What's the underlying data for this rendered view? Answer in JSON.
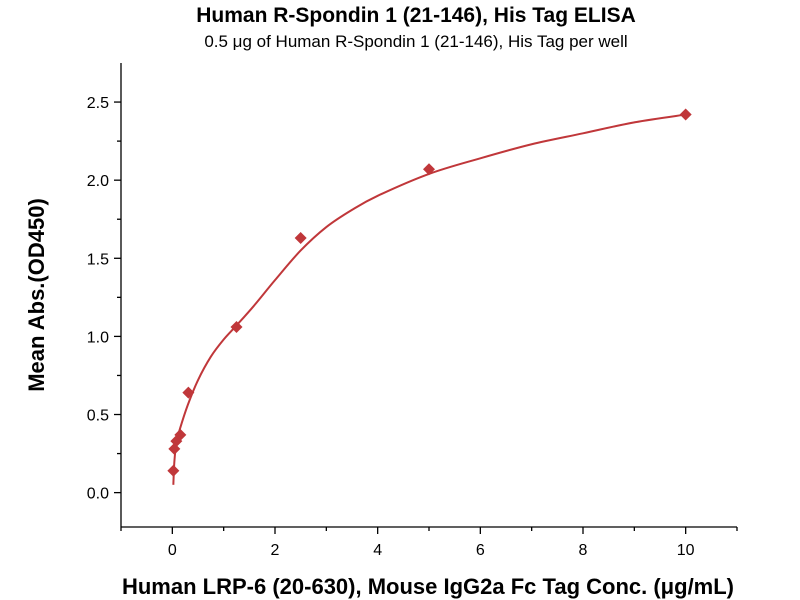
{
  "chart_data": {
    "type": "scatter",
    "title": "Human R-Spondin 1 (21-146), His Tag ELISA",
    "subtitle": "0.5 μg of Human R-Spondin 1 (21-146), His Tag per well",
    "xlabel": "Human LRP-6 (20-630), Mouse IgG2a Fc Tag Conc. (μg/mL)",
    "ylabel": "Mean Abs.(OD450)",
    "xlim": [
      -1,
      11
    ],
    "ylim": [
      -0.22,
      2.75
    ],
    "x_ticks": [
      0,
      2,
      4,
      6,
      8,
      10
    ],
    "x_tick_labels": [
      "0",
      "2",
      "4",
      "6",
      "8",
      "10"
    ],
    "x_minor_ticks": [
      -1,
      1,
      3,
      5,
      7,
      9,
      11
    ],
    "y_ticks": [
      0.0,
      0.5,
      1.0,
      1.5,
      2.0,
      2.5
    ],
    "y_tick_labels": [
      "0.0",
      "0.5",
      "1.0",
      "1.5",
      "2.0",
      "2.5"
    ],
    "y_minor_ticks": [
      0.25,
      0.75,
      1.25,
      1.75,
      2.25
    ],
    "series": [
      {
        "x": [
          0.0195,
          0.039,
          0.078,
          0.156,
          0.3125,
          1.25,
          2.5,
          5.0,
          10.0
        ],
        "y": [
          0.14,
          0.28,
          0.33,
          0.37,
          0.64,
          1.06,
          1.63,
          2.07,
          2.42
        ],
        "marker": "diamond",
        "color": "#c0373a"
      }
    ],
    "fit_curve": {
      "color": "#c0373a",
      "x": [
        0.0195,
        0.04,
        0.08,
        0.15,
        0.3,
        0.5,
        0.75,
        1.0,
        1.25,
        1.6,
        2.0,
        2.5,
        3.0,
        3.5,
        4.0,
        5.0,
        6.0,
        7.0,
        8.0,
        9.0,
        10.0
      ],
      "y": [
        0.05,
        0.2,
        0.32,
        0.41,
        0.56,
        0.72,
        0.87,
        0.98,
        1.07,
        1.2,
        1.36,
        1.55,
        1.7,
        1.81,
        1.9,
        2.04,
        2.14,
        2.23,
        2.3,
        2.37,
        2.42
      ]
    },
    "grid": false,
    "legend": "none"
  }
}
